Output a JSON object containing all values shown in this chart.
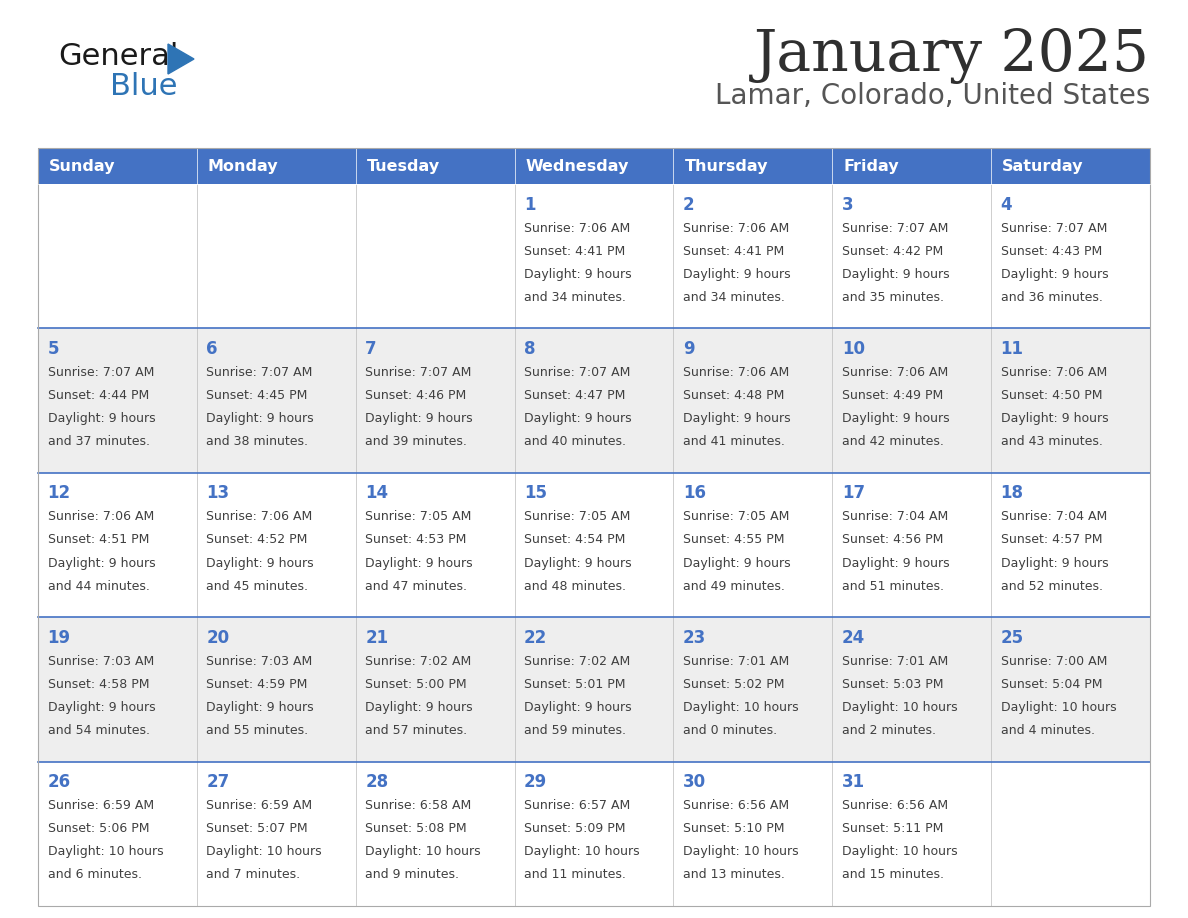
{
  "title": "January 2025",
  "subtitle": "Lamar, Colorado, United States",
  "days_of_week": [
    "Sunday",
    "Monday",
    "Tuesday",
    "Wednesday",
    "Thursday",
    "Friday",
    "Saturday"
  ],
  "header_bg_color": "#4472C4",
  "header_text_color": "#FFFFFF",
  "row_bg_odd": "#FFFFFF",
  "row_bg_even": "#EEEEEE",
  "date_text_color": "#4472C4",
  "content_text_color": "#404040",
  "title_color": "#2F2F2F",
  "subtitle_color": "#555555",
  "logo_general_color": "#1A1A1A",
  "logo_blue_color": "#2E74B5",
  "logo_triangle_color": "#2E74B5",
  "divider_color": "#4472C4",
  "cell_border_color": "#BBBBBB",
  "calendar_data": [
    [
      null,
      null,
      null,
      {
        "day": 1,
        "sunrise": "7:06 AM",
        "sunset": "4:41 PM",
        "daylight": "9 hours and 34 minutes."
      },
      {
        "day": 2,
        "sunrise": "7:06 AM",
        "sunset": "4:41 PM",
        "daylight": "9 hours and 34 minutes."
      },
      {
        "day": 3,
        "sunrise": "7:07 AM",
        "sunset": "4:42 PM",
        "daylight": "9 hours and 35 minutes."
      },
      {
        "day": 4,
        "sunrise": "7:07 AM",
        "sunset": "4:43 PM",
        "daylight": "9 hours and 36 minutes."
      }
    ],
    [
      {
        "day": 5,
        "sunrise": "7:07 AM",
        "sunset": "4:44 PM",
        "daylight": "9 hours and 37 minutes."
      },
      {
        "day": 6,
        "sunrise": "7:07 AM",
        "sunset": "4:45 PM",
        "daylight": "9 hours and 38 minutes."
      },
      {
        "day": 7,
        "sunrise": "7:07 AM",
        "sunset": "4:46 PM",
        "daylight": "9 hours and 39 minutes."
      },
      {
        "day": 8,
        "sunrise": "7:07 AM",
        "sunset": "4:47 PM",
        "daylight": "9 hours and 40 minutes."
      },
      {
        "day": 9,
        "sunrise": "7:06 AM",
        "sunset": "4:48 PM",
        "daylight": "9 hours and 41 minutes."
      },
      {
        "day": 10,
        "sunrise": "7:06 AM",
        "sunset": "4:49 PM",
        "daylight": "9 hours and 42 minutes."
      },
      {
        "day": 11,
        "sunrise": "7:06 AM",
        "sunset": "4:50 PM",
        "daylight": "9 hours and 43 minutes."
      }
    ],
    [
      {
        "day": 12,
        "sunrise": "7:06 AM",
        "sunset": "4:51 PM",
        "daylight": "9 hours and 44 minutes."
      },
      {
        "day": 13,
        "sunrise": "7:06 AM",
        "sunset": "4:52 PM",
        "daylight": "9 hours and 45 minutes."
      },
      {
        "day": 14,
        "sunrise": "7:05 AM",
        "sunset": "4:53 PM",
        "daylight": "9 hours and 47 minutes."
      },
      {
        "day": 15,
        "sunrise": "7:05 AM",
        "sunset": "4:54 PM",
        "daylight": "9 hours and 48 minutes."
      },
      {
        "day": 16,
        "sunrise": "7:05 AM",
        "sunset": "4:55 PM",
        "daylight": "9 hours and 49 minutes."
      },
      {
        "day": 17,
        "sunrise": "7:04 AM",
        "sunset": "4:56 PM",
        "daylight": "9 hours and 51 minutes."
      },
      {
        "day": 18,
        "sunrise": "7:04 AM",
        "sunset": "4:57 PM",
        "daylight": "9 hours and 52 minutes."
      }
    ],
    [
      {
        "day": 19,
        "sunrise": "7:03 AM",
        "sunset": "4:58 PM",
        "daylight": "9 hours and 54 minutes."
      },
      {
        "day": 20,
        "sunrise": "7:03 AM",
        "sunset": "4:59 PM",
        "daylight": "9 hours and 55 minutes."
      },
      {
        "day": 21,
        "sunrise": "7:02 AM",
        "sunset": "5:00 PM",
        "daylight": "9 hours and 57 minutes."
      },
      {
        "day": 22,
        "sunrise": "7:02 AM",
        "sunset": "5:01 PM",
        "daylight": "9 hours and 59 minutes."
      },
      {
        "day": 23,
        "sunrise": "7:01 AM",
        "sunset": "5:02 PM",
        "daylight": "10 hours and 0 minutes."
      },
      {
        "day": 24,
        "sunrise": "7:01 AM",
        "sunset": "5:03 PM",
        "daylight": "10 hours and 2 minutes."
      },
      {
        "day": 25,
        "sunrise": "7:00 AM",
        "sunset": "5:04 PM",
        "daylight": "10 hours and 4 minutes."
      }
    ],
    [
      {
        "day": 26,
        "sunrise": "6:59 AM",
        "sunset": "5:06 PM",
        "daylight": "10 hours and 6 minutes."
      },
      {
        "day": 27,
        "sunrise": "6:59 AM",
        "sunset": "5:07 PM",
        "daylight": "10 hours and 7 minutes."
      },
      {
        "day": 28,
        "sunrise": "6:58 AM",
        "sunset": "5:08 PM",
        "daylight": "10 hours and 9 minutes."
      },
      {
        "day": 29,
        "sunrise": "6:57 AM",
        "sunset": "5:09 PM",
        "daylight": "10 hours and 11 minutes."
      },
      {
        "day": 30,
        "sunrise": "6:56 AM",
        "sunset": "5:10 PM",
        "daylight": "10 hours and 13 minutes."
      },
      {
        "day": 31,
        "sunrise": "6:56 AM",
        "sunset": "5:11 PM",
        "daylight": "10 hours and 15 minutes."
      },
      null
    ]
  ]
}
